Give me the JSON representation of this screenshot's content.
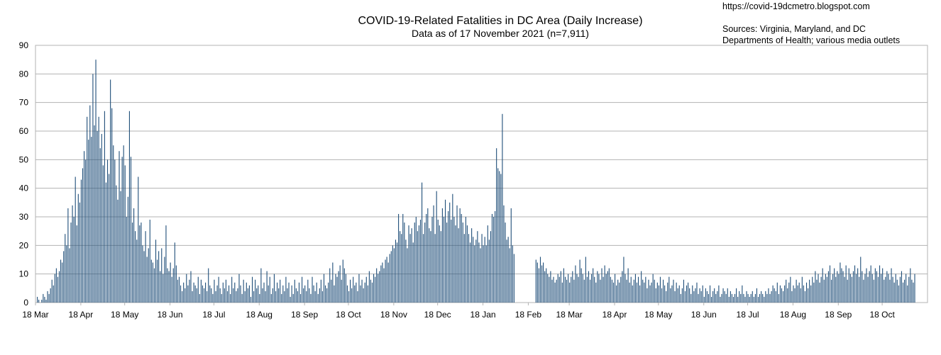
{
  "chart_data": {
    "type": "bar",
    "title": "COVID-19-Related Fatalities in DC Area (Daily Increase)",
    "subtitle": "Data as of 17 November 2021 (n=7,911)",
    "source_url": "https://covid-19dcmetro.blogspot.com",
    "sources_line1": "Sources: Virginia, Maryland, and DC",
    "sources_line2": "Departments of Health; various media outlets",
    "xlabel": "",
    "ylabel": "",
    "ylim": [
      0,
      90
    ],
    "y_ticks": [
      0,
      10,
      20,
      30,
      40,
      50,
      60,
      70,
      80,
      90
    ],
    "x_ticks": [
      "18 Mar",
      "18 Apr",
      "18 May",
      "18 Jun",
      "18 Jul",
      "18 Aug",
      "18 Sep",
      "18 Oct",
      "18 Nov",
      "18 Dec",
      "18 Jan",
      "18 Feb",
      "18 Mar",
      "18 Apr",
      "18 May",
      "18 Jun",
      "18 Jul",
      "18 Aug",
      "18 Sep",
      "18 Oct"
    ],
    "x_range": [
      "2020-03-18",
      "2021-11-17"
    ],
    "grid": "horizontal",
    "bar_color": "#1f4e79",
    "series": [
      {
        "name": "",
        "segments": [
          {
            "start": "2020-03-18",
            "values": [
              0,
              2,
              1,
              0,
              1,
              3,
              2,
              1,
              4,
              3,
              5,
              8,
              6,
              10,
              12,
              9,
              11,
              15,
              14,
              18,
              24,
              20,
              33,
              19,
              28,
              34,
              30,
              44,
              27,
              38,
              35,
              43,
              47,
              53,
              50,
              65,
              57,
              69,
              58,
              80,
              62,
              85,
              60,
              65,
              54,
              59,
              48,
              67,
              42,
              50,
              45,
              78,
              68,
              55,
              50,
              41,
              36,
              53,
              39,
              51,
              55,
              48,
              30,
              37,
              67,
              51,
              28,
              33,
              25,
              22,
              44,
              27,
              28,
              20,
              18,
              25,
              16,
              19,
              29,
              15,
              14,
              12,
              22,
              15,
              18,
              11,
              19,
              10,
              16,
              27,
              12,
              11,
              14,
              9,
              12,
              21,
              13,
              8,
              9,
              6
            ]
          },
          {
            "start": "2020-06-26",
            "values": [
              4,
              7,
              5,
              10,
              6,
              8,
              11,
              4,
              7,
              6,
              5,
              9,
              3,
              8,
              6,
              5,
              7,
              4,
              12,
              6,
              5,
              3,
              8,
              4,
              6,
              9,
              5,
              3,
              7,
              5,
              8,
              4,
              6,
              3,
              9,
              5,
              7,
              4,
              5,
              10,
              6,
              3,
              8,
              4,
              7,
              5,
              6,
              2,
              9,
              4,
              8,
              5,
              6,
              3,
              12,
              5,
              7,
              4,
              11,
              6,
              9,
              3,
              5,
              10,
              4,
              7,
              5,
              8,
              3,
              6,
              4,
              9,
              5,
              7,
              2,
              6,
              3,
              8,
              5,
              4,
              7,
              3,
              9,
              5,
              6,
              4,
              8,
              5,
              3,
              9,
              6,
              4,
              7,
              3,
              5,
              8,
              4,
              10,
              6,
              5,
              7,
              12,
              8,
              14,
              6,
              10,
              9,
              11,
              13,
              8,
              15,
              12,
              10
            ]
          },
          {
            "start": "2020-10-17",
            "values": [
              6,
              4,
              8,
              5,
              9,
              6,
              7,
              4,
              10,
              6,
              8,
              5,
              7,
              9,
              6,
              11,
              8,
              7,
              10,
              9,
              12,
              10,
              11,
              13,
              14,
              12,
              15,
              16,
              14,
              17,
              18,
              20,
              19,
              22,
              21,
              31,
              25,
              24,
              31,
              28,
              22,
              19,
              27,
              24,
              26,
              21,
              28,
              30,
              25,
              27,
              29,
              42,
              24,
              28,
              31,
              33,
              26,
              25,
              30,
              34,
              24,
              39,
              29,
              27,
              25,
              33,
              30,
              36,
              28,
              32,
              35,
              29,
              38,
              30,
              27,
              34,
              26,
              33,
              31,
              28,
              24,
              30,
              27,
              24,
              21,
              26,
              23,
              20,
              22,
              25,
              21,
              19,
              24,
              20,
              23,
              20,
              27,
              22,
              25,
              31,
              30,
              32,
              54,
              47,
              46,
              45,
              66,
              34,
              28,
              22,
              23,
              19,
              33,
              20,
              17
            ]
          },
          {
            "start": "2021-02-23",
            "values": [
              15,
              14,
              12,
              16,
              13,
              14,
              11,
              12,
              10,
              9,
              11,
              8,
              9,
              7,
              8,
              10,
              9,
              11,
              7,
              12,
              9,
              8,
              10,
              7,
              9,
              11,
              8,
              13,
              10,
              9,
              15,
              12,
              10,
              8,
              16,
              9,
              11,
              8,
              10,
              12,
              9,
              7,
              11,
              10,
              8,
              12,
              9,
              13,
              10,
              11,
              12,
              9,
              8,
              7,
              10,
              6,
              8,
              7,
              9,
              11,
              16,
              10,
              8,
              12,
              7,
              9,
              6,
              8,
              10,
              7,
              9,
              6,
              11,
              8,
              7,
              9,
              5,
              8,
              6,
              7,
              10,
              8,
              5,
              7,
              6,
              9,
              5,
              8,
              6,
              4,
              7,
              9,
              5,
              6,
              8,
              4,
              7,
              5,
              6,
              3,
              5,
              8,
              4,
              6,
              7,
              5,
              3,
              6,
              4,
              5,
              7,
              3,
              5,
              4,
              6,
              2,
              5,
              4,
              3,
              6,
              2,
              4,
              5,
              3,
              4,
              6,
              2,
              3,
              5,
              4,
              3,
              5,
              2,
              4,
              3,
              2,
              3,
              5,
              2,
              4,
              3,
              6,
              3,
              2,
              4,
              3,
              2,
              3,
              4,
              2,
              3,
              5,
              2,
              3,
              4,
              3,
              2,
              4,
              3,
              5,
              3,
              4,
              6,
              5,
              4,
              7,
              3,
              6,
              5,
              4,
              6,
              8,
              5,
              7,
              9,
              4,
              6,
              5,
              8,
              6,
              7,
              5,
              9,
              6,
              4,
              7,
              5,
              8,
              6,
              9,
              7,
              11,
              8,
              10,
              7,
              9,
              12,
              8,
              10,
              9,
              11,
              13,
              8,
              10,
              12,
              9,
              11,
              10,
              14,
              12,
              11,
              9,
              13,
              8,
              12,
              10,
              9,
              11,
              13,
              10,
              12,
              9,
              16,
              11,
              8,
              10,
              12,
              9,
              11,
              13,
              10,
              8,
              12,
              11,
              9,
              13,
              10,
              12,
              8,
              9,
              11,
              10,
              8,
              12,
              9,
              7,
              10,
              8,
              6,
              9,
              11,
              7,
              8,
              10,
              6,
              9,
              12,
              8,
              7,
              10
            ]
          }
        ]
      }
    ]
  }
}
